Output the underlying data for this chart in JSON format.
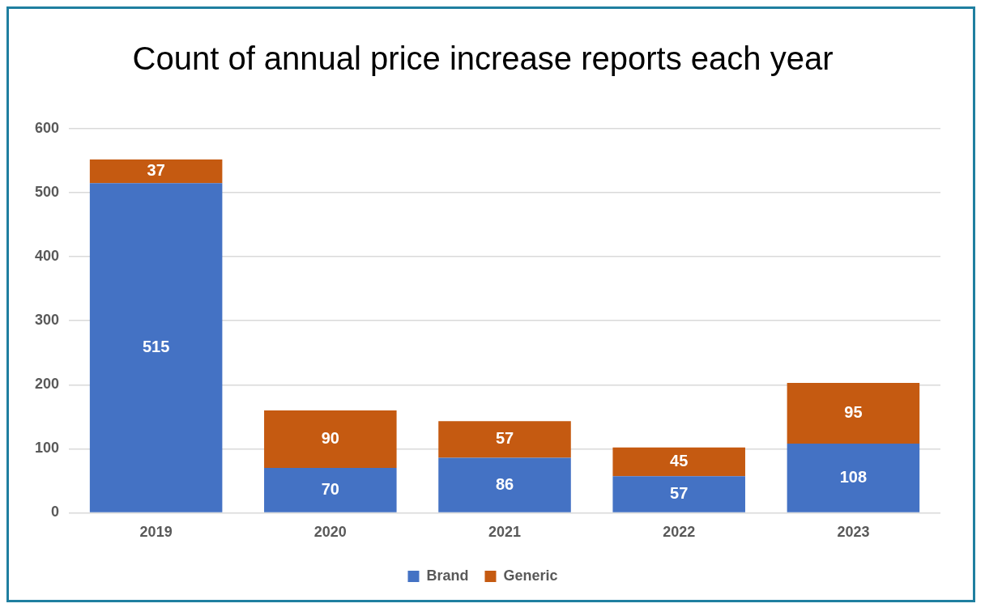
{
  "chart_data": {
    "type": "bar",
    "title": "Count of annual price increase reports each year",
    "categories": [
      "2019",
      "2020",
      "2021",
      "2022",
      "2023"
    ],
    "stacked": true,
    "series": [
      {
        "name": "Brand",
        "color": "#4472c4",
        "values": [
          515,
          70,
          86,
          57,
          108
        ]
      },
      {
        "name": "Generic",
        "color": "#c55a11",
        "values": [
          37,
          90,
          57,
          45,
          95
        ]
      }
    ],
    "ylim": [
      0,
      600
    ],
    "yticks": [
      0,
      100,
      200,
      300,
      400,
      500,
      600
    ],
    "grid": "y",
    "legend": "bottom",
    "data_labels": true
  }
}
